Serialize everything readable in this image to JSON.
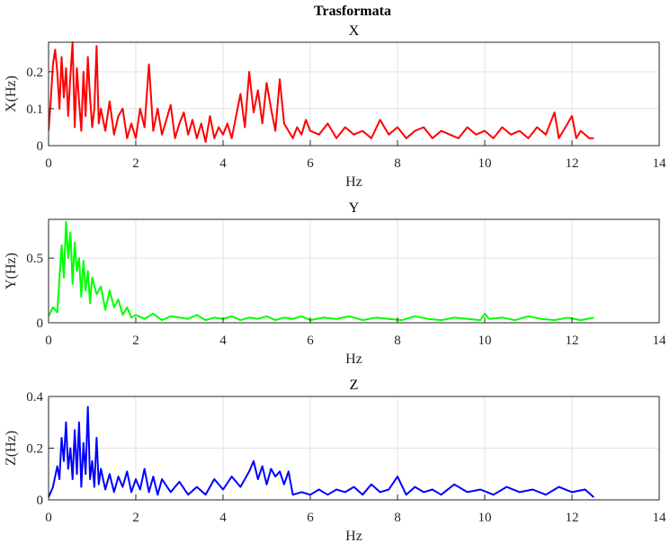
{
  "figure": {
    "title": "Trasformata"
  },
  "colors": {
    "grid": "#e3e3e3",
    "axis": "#262626",
    "background": "#ffffff"
  },
  "chart_data": [
    {
      "type": "line",
      "title": "X",
      "xlabel": "Hz",
      "ylabel": "X(Hz)",
      "xlim": [
        0,
        14
      ],
      "ylim": [
        0,
        0.28
      ],
      "xticks": [
        0,
        2,
        4,
        6,
        8,
        10,
        12,
        14
      ],
      "yticks": [
        0,
        0.1,
        0.2
      ],
      "xtick_labels": [
        "0",
        "2",
        "4",
        "6",
        "8",
        "10",
        "12",
        "14"
      ],
      "ytick_labels": [
        "0",
        "0.1",
        "0.2"
      ],
      "grid": true,
      "series": [
        {
          "color": "#ff0000",
          "x": [
            0,
            0.05,
            0.1,
            0.15,
            0.2,
            0.25,
            0.3,
            0.35,
            0.4,
            0.45,
            0.5,
            0.55,
            0.6,
            0.65,
            0.7,
            0.75,
            0.8,
            0.85,
            0.9,
            0.95,
            1.0,
            1.05,
            1.1,
            1.15,
            1.2,
            1.3,
            1.4,
            1.5,
            1.6,
            1.7,
            1.8,
            1.9,
            2.0,
            2.1,
            2.2,
            2.3,
            2.4,
            2.5,
            2.6,
            2.7,
            2.8,
            2.9,
            3.0,
            3.1,
            3.2,
            3.3,
            3.4,
            3.5,
            3.6,
            3.7,
            3.8,
            3.9,
            4.0,
            4.1,
            4.2,
            4.3,
            4.4,
            4.5,
            4.6,
            4.7,
            4.8,
            4.9,
            5.0,
            5.1,
            5.2,
            5.3,
            5.4,
            5.5,
            5.6,
            5.7,
            5.8,
            5.9,
            6.0,
            6.2,
            6.4,
            6.6,
            6.8,
            7.0,
            7.2,
            7.4,
            7.6,
            7.8,
            8.0,
            8.2,
            8.4,
            8.6,
            8.8,
            9.0,
            9.2,
            9.4,
            9.6,
            9.8,
            10.0,
            10.2,
            10.4,
            10.6,
            10.8,
            11.0,
            11.2,
            11.4,
            11.6,
            11.7,
            11.8,
            12.0,
            12.1,
            12.2,
            12.4,
            12.5
          ],
          "y": [
            0.04,
            0.12,
            0.22,
            0.26,
            0.2,
            0.1,
            0.24,
            0.13,
            0.21,
            0.08,
            0.19,
            0.28,
            0.05,
            0.21,
            0.12,
            0.04,
            0.2,
            0.08,
            0.24,
            0.13,
            0.05,
            0.1,
            0.27,
            0.06,
            0.1,
            0.04,
            0.12,
            0.03,
            0.08,
            0.1,
            0.02,
            0.06,
            0.02,
            0.1,
            0.05,
            0.22,
            0.04,
            0.1,
            0.03,
            0.07,
            0.11,
            0.02,
            0.06,
            0.09,
            0.03,
            0.07,
            0.02,
            0.06,
            0.01,
            0.08,
            0.02,
            0.05,
            0.03,
            0.06,
            0.02,
            0.08,
            0.14,
            0.05,
            0.2,
            0.09,
            0.15,
            0.06,
            0.17,
            0.1,
            0.04,
            0.18,
            0.06,
            0.04,
            0.02,
            0.05,
            0.03,
            0.07,
            0.04,
            0.03,
            0.06,
            0.02,
            0.05,
            0.03,
            0.04,
            0.02,
            0.07,
            0.03,
            0.05,
            0.02,
            0.04,
            0.05,
            0.02,
            0.04,
            0.03,
            0.02,
            0.05,
            0.03,
            0.04,
            0.02,
            0.05,
            0.03,
            0.04,
            0.02,
            0.05,
            0.03,
            0.09,
            0.02,
            0.04,
            0.08,
            0.02,
            0.04,
            0.02,
            0.02
          ]
        }
      ]
    },
    {
      "type": "line",
      "title": "Y",
      "xlabel": "Hz",
      "ylabel": "Y(Hz)",
      "xlim": [
        0,
        14
      ],
      "ylim": [
        0,
        0.8
      ],
      "xticks": [
        0,
        2,
        4,
        6,
        8,
        10,
        12,
        14
      ],
      "yticks": [
        0,
        0.5
      ],
      "xtick_labels": [
        "0",
        "2",
        "4",
        "6",
        "8",
        "10",
        "12",
        "14"
      ],
      "ytick_labels": [
        "0",
        "0.5"
      ],
      "grid": true,
      "series": [
        {
          "color": "#00ff00",
          "x": [
            0,
            0.1,
            0.2,
            0.3,
            0.35,
            0.4,
            0.45,
            0.5,
            0.55,
            0.6,
            0.65,
            0.7,
            0.75,
            0.8,
            0.85,
            0.9,
            0.95,
            1.0,
            1.1,
            1.2,
            1.3,
            1.4,
            1.5,
            1.6,
            1.7,
            1.8,
            1.9,
            2.0,
            2.2,
            2.4,
            2.6,
            2.8,
            3.0,
            3.2,
            3.4,
            3.6,
            3.8,
            4.0,
            4.2,
            4.4,
            4.6,
            4.8,
            5.0,
            5.2,
            5.4,
            5.6,
            5.8,
            6.0,
            6.3,
            6.6,
            6.9,
            7.2,
            7.5,
            7.8,
            8.1,
            8.4,
            8.7,
            9.0,
            9.3,
            9.6,
            9.9,
            10.0,
            10.1,
            10.4,
            10.7,
            11.0,
            11.3,
            11.6,
            11.9,
            12.2,
            12.5
          ],
          "y": [
            0.05,
            0.12,
            0.08,
            0.6,
            0.35,
            0.78,
            0.5,
            0.7,
            0.3,
            0.62,
            0.4,
            0.5,
            0.2,
            0.48,
            0.25,
            0.4,
            0.15,
            0.35,
            0.22,
            0.28,
            0.1,
            0.25,
            0.12,
            0.18,
            0.06,
            0.12,
            0.04,
            0.06,
            0.03,
            0.07,
            0.02,
            0.05,
            0.04,
            0.03,
            0.06,
            0.02,
            0.04,
            0.03,
            0.05,
            0.02,
            0.04,
            0.03,
            0.05,
            0.02,
            0.04,
            0.03,
            0.05,
            0.02,
            0.04,
            0.03,
            0.05,
            0.02,
            0.04,
            0.03,
            0.02,
            0.05,
            0.03,
            0.02,
            0.04,
            0.03,
            0.02,
            0.07,
            0.03,
            0.04,
            0.02,
            0.05,
            0.03,
            0.02,
            0.04,
            0.02,
            0.04
          ]
        }
      ]
    },
    {
      "type": "line",
      "title": "Z",
      "xlabel": "Hz",
      "ylabel": "Z(Hz)",
      "xlim": [
        0,
        14
      ],
      "ylim": [
        0,
        0.4
      ],
      "xticks": [
        0,
        2,
        4,
        6,
        8,
        10,
        12,
        14
      ],
      "yticks": [
        0,
        0.2,
        0.4
      ],
      "xtick_labels": [
        "0",
        "2",
        "4",
        "6",
        "8",
        "10",
        "12",
        "14"
      ],
      "ytick_labels": [
        "0",
        "0.2",
        "0.4"
      ],
      "grid": true,
      "series": [
        {
          "color": "#0000ff",
          "x": [
            0,
            0.1,
            0.2,
            0.25,
            0.3,
            0.35,
            0.4,
            0.45,
            0.5,
            0.55,
            0.6,
            0.65,
            0.7,
            0.75,
            0.8,
            0.85,
            0.9,
            0.95,
            1.0,
            1.05,
            1.1,
            1.15,
            1.2,
            1.3,
            1.4,
            1.5,
            1.6,
            1.7,
            1.8,
            1.9,
            2.0,
            2.1,
            2.2,
            2.3,
            2.4,
            2.5,
            2.6,
            2.8,
            3.0,
            3.2,
            3.4,
            3.6,
            3.8,
            4.0,
            4.2,
            4.4,
            4.6,
            4.7,
            4.8,
            4.9,
            5.0,
            5.1,
            5.2,
            5.3,
            5.4,
            5.5,
            5.6,
            5.8,
            6.0,
            6.2,
            6.4,
            6.6,
            6.8,
            7.0,
            7.2,
            7.4,
            7.6,
            7.8,
            8.0,
            8.2,
            8.4,
            8.6,
            8.8,
            9.0,
            9.3,
            9.6,
            9.9,
            10.2,
            10.5,
            10.8,
            11.1,
            11.4,
            11.7,
            12.0,
            12.3,
            12.5
          ],
          "y": [
            0.01,
            0.05,
            0.13,
            0.08,
            0.24,
            0.15,
            0.3,
            0.12,
            0.2,
            0.08,
            0.27,
            0.1,
            0.3,
            0.05,
            0.22,
            0.1,
            0.36,
            0.08,
            0.15,
            0.05,
            0.24,
            0.06,
            0.12,
            0.04,
            0.1,
            0.03,
            0.09,
            0.05,
            0.11,
            0.03,
            0.08,
            0.04,
            0.12,
            0.03,
            0.09,
            0.02,
            0.08,
            0.03,
            0.07,
            0.02,
            0.05,
            0.02,
            0.08,
            0.04,
            0.09,
            0.05,
            0.11,
            0.15,
            0.08,
            0.13,
            0.06,
            0.12,
            0.09,
            0.11,
            0.06,
            0.11,
            0.02,
            0.03,
            0.02,
            0.04,
            0.02,
            0.04,
            0.03,
            0.05,
            0.02,
            0.06,
            0.03,
            0.04,
            0.09,
            0.02,
            0.05,
            0.03,
            0.04,
            0.02,
            0.06,
            0.03,
            0.04,
            0.02,
            0.05,
            0.03,
            0.04,
            0.02,
            0.05,
            0.03,
            0.04,
            0.01
          ]
        }
      ]
    }
  ]
}
